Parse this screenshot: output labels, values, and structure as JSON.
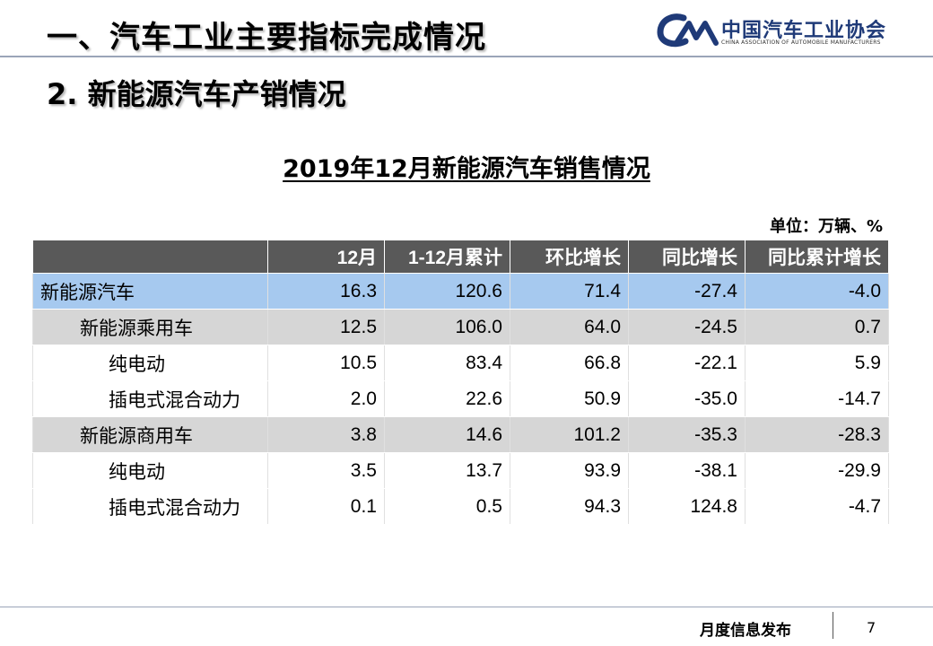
{
  "header": {
    "title": "一、汽车工业主要指标完成情况",
    "logo": {
      "cn": "中国汽车工业协会",
      "en": "CHINA ASSOCIATION OF AUTOMOBILE MANUFACTURERS",
      "icon": "caam-logo-icon",
      "color": "#1f3a78"
    }
  },
  "section": {
    "title": "2. 新能源汽车产销情况"
  },
  "table": {
    "title": "2019年12月新能源汽车销售情况",
    "unit": "单位：万辆、%",
    "columns": [
      "",
      "12月",
      "1-12月累计",
      "环比增长",
      "同比增长",
      "同比累计增长"
    ],
    "rows": [
      {
        "label": "新能源汽车",
        "values": [
          "16.3",
          "120.6",
          "71.4",
          "-27.4",
          "-4.0"
        ]
      },
      {
        "label": "新能源乘用车",
        "values": [
          "12.5",
          "106.0",
          "64.0",
          "-24.5",
          "0.7"
        ]
      },
      {
        "label": "纯电动",
        "values": [
          "10.5",
          "83.4",
          "66.8",
          "-22.1",
          "5.9"
        ]
      },
      {
        "label": "插电式混合动力",
        "values": [
          "2.0",
          "22.6",
          "50.9",
          "-35.0",
          "-14.7"
        ]
      },
      {
        "label": "新能源商用车",
        "values": [
          "3.8",
          "14.6",
          "101.2",
          "-35.3",
          "-28.3"
        ]
      },
      {
        "label": "纯电动",
        "values": [
          "3.5",
          "13.7",
          "93.9",
          "-38.1",
          "-29.9"
        ]
      },
      {
        "label": "插电式混合动力",
        "values": [
          "0.1",
          "0.5",
          "94.3",
          "124.8",
          "-4.7"
        ]
      }
    ]
  },
  "footer": {
    "text": "月度信息发布",
    "page": "7"
  }
}
